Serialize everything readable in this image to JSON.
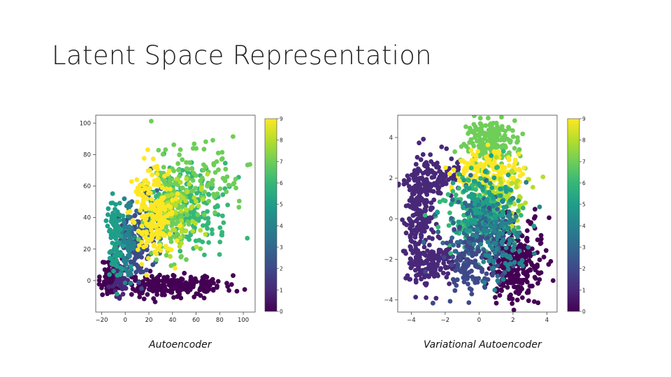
{
  "slide": {
    "title": "Latent Space Representation"
  },
  "palette": {
    "viridis": [
      "#440154",
      "#482878",
      "#3e4989",
      "#31688e",
      "#26828e",
      "#1f9e89",
      "#35b779",
      "#6ece58",
      "#b5de2b",
      "#fde725"
    ]
  },
  "chart_data": [
    {
      "type": "scatter",
      "caption": "Autoencoder",
      "xlim": [
        -25,
        110
      ],
      "ylim": [
        -20,
        105
      ],
      "xticks": [
        -20,
        0,
        20,
        40,
        60,
        80,
        100
      ],
      "xtick_labels": [
        "−20",
        "0",
        "20",
        "40",
        "60",
        "80",
        "100"
      ],
      "yticks": [
        0,
        20,
        40,
        60,
        80,
        100
      ],
      "ytick_labels": [
        "0",
        "20",
        "40",
        "60",
        "80",
        "100"
      ],
      "colorbar": {
        "min": 0,
        "max": 9,
        "ticks": [
          "0",
          "1",
          "2",
          "3",
          "4",
          "5",
          "6",
          "7",
          "8",
          "9"
        ]
      },
      "clusters": [
        {
          "label": 0,
          "cx": -12,
          "cy": 2,
          "sx": 4,
          "sy": 6,
          "n": 90
        },
        {
          "label": 0,
          "cx": 40,
          "cy": -3,
          "sx": 22,
          "sy": 3.5,
          "n": 240
        },
        {
          "label": 1,
          "cx": -5,
          "cy": 0,
          "sx": 4,
          "sy": 5,
          "n": 50
        },
        {
          "label": 2,
          "cx": 8,
          "cy": 25,
          "sx": 7,
          "sy": 12,
          "n": 110
        },
        {
          "label": 3,
          "cx": 20,
          "cy": 40,
          "sx": 8,
          "sy": 10,
          "n": 80
        },
        {
          "label": 4,
          "cx": 2,
          "cy": 25,
          "sx": 3,
          "sy": 12,
          "n": 70
        },
        {
          "label": 5,
          "cx": -9,
          "cy": 28,
          "sx": 3,
          "sy": 12,
          "n": 90
        },
        {
          "label": 6,
          "cx": 55,
          "cy": 48,
          "sx": 16,
          "sy": 13,
          "n": 200
        },
        {
          "label": 7,
          "cx": 38,
          "cy": 45,
          "sx": 10,
          "sy": 15,
          "n": 170
        },
        {
          "label": 7,
          "cx": 70,
          "cy": 65,
          "sx": 15,
          "sy": 14,
          "n": 70
        },
        {
          "label": 8,
          "cx": 45,
          "cy": 42,
          "sx": 9,
          "sy": 12,
          "n": 70
        },
        {
          "label": 9,
          "cx": 25,
          "cy": 42,
          "sx": 8,
          "sy": 15,
          "n": 200
        }
      ]
    },
    {
      "type": "scatter",
      "caption": "Variational Autoencoder",
      "xlim": [
        -4.8,
        4.6
      ],
      "ylim": [
        -4.6,
        5.1
      ],
      "xticks": [
        -4,
        -2,
        0,
        2,
        4
      ],
      "xtick_labels": [
        "−4",
        "−2",
        "0",
        "2",
        "4"
      ],
      "yticks": [
        -4,
        -2,
        0,
        2,
        4
      ],
      "ytick_labels": [
        "−4",
        "−2",
        "0",
        "2",
        "4"
      ],
      "colorbar": {
        "min": 0,
        "max": 9,
        "ticks": [
          "0",
          "1",
          "2",
          "3",
          "4",
          "5",
          "6",
          "7",
          "8",
          "9"
        ]
      },
      "clusters": [
        {
          "label": 1,
          "cx": -3.6,
          "cy": 0,
          "sx": 0.45,
          "sy": 1.5,
          "n": 220
        },
        {
          "label": 1,
          "cx": -2.6,
          "cy": 2.0,
          "sx": 0.8,
          "sy": 0.45,
          "n": 120
        },
        {
          "label": 1,
          "cx": -2.6,
          "cy": -2.2,
          "sx": 0.8,
          "sy": 0.45,
          "n": 120
        },
        {
          "label": 0,
          "cx": 2.2,
          "cy": -2.1,
          "sx": 0.8,
          "sy": 1.0,
          "n": 300
        },
        {
          "label": 7,
          "cx": 0.6,
          "cy": 3.8,
          "sx": 0.75,
          "sy": 0.55,
          "n": 220
        },
        {
          "label": 9,
          "cx": 0.5,
          "cy": 2.2,
          "sx": 1.0,
          "sy": 0.5,
          "n": 170
        },
        {
          "label": 8,
          "cx": 1.5,
          "cy": 1.0,
          "sx": 0.9,
          "sy": 0.7,
          "n": 90
        },
        {
          "label": 6,
          "cx": 0.0,
          "cy": 0.2,
          "sx": 1.1,
          "sy": 1.0,
          "n": 200
        },
        {
          "label": 3,
          "cx": 0.0,
          "cy": -0.5,
          "sx": 1.0,
          "sy": 1.0,
          "n": 160
        },
        {
          "label": 5,
          "cx": 0.3,
          "cy": 0.7,
          "sx": 0.9,
          "sy": 0.9,
          "n": 100
        },
        {
          "label": 2,
          "cx": -0.3,
          "cy": -2.0,
          "sx": 0.9,
          "sy": 0.9,
          "n": 130
        },
        {
          "label": 4,
          "cx": 1.2,
          "cy": -1.0,
          "sx": 0.9,
          "sy": 1.0,
          "n": 90
        }
      ]
    }
  ]
}
